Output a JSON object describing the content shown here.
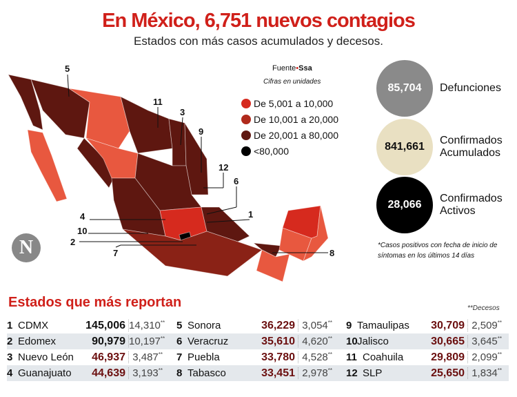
{
  "header": {
    "title": "En México, 6,751 nuevos contagios",
    "subtitle": "Estados con más casos acumulados y decesos."
  },
  "map": {
    "source_label": "Fuente",
    "source_dot": "•",
    "source": "Ssa",
    "units_note": "Cifras en unidades",
    "legend": [
      {
        "label": "De 5,001 a 10,000",
        "color": "#d62a1e"
      },
      {
        "label": "De 10,001 a 20,000",
        "color": "#b02a1c"
      },
      {
        "label": "De 20,001 a 80,000",
        "color": "#5e1710"
      },
      {
        "label": "<80,000",
        "color": "#000000"
      }
    ],
    "other_color": "#e8583f",
    "state_numbers": [
      "1",
      "2",
      "3",
      "4",
      "5",
      "6",
      "7",
      "8",
      "9",
      "10",
      "11",
      "12"
    ],
    "logo": "N"
  },
  "stats": [
    {
      "value": "85,704",
      "label": "Defunciones",
      "color": "#8a8a8a"
    },
    {
      "value": "841,661",
      "label": "Confirmados Acumulados",
      "color": "#e9e0c2"
    },
    {
      "value": "28,066",
      "label": "Confirmados Activos",
      "color": "#000000"
    }
  ],
  "note": "*Casos positivos con fecha de inicio de síntomas en los últimos 14 días",
  "table": {
    "title": "Estados que más reportan",
    "deaths_legend": "**Decesos",
    "rows": [
      {
        "n": "1",
        "state": "CDMX",
        "cases": "145,006",
        "deaths": "14,310"
      },
      {
        "n": "2",
        "state": "Edomex",
        "cases": "90,979",
        "deaths": "10,197"
      },
      {
        "n": "3",
        "state": "Nuevo León",
        "cases": "46,937",
        "deaths": "3,487"
      },
      {
        "n": "4",
        "state": "Guanajuato",
        "cases": "44,639",
        "deaths": "3,193"
      },
      {
        "n": "5",
        "state": "Sonora",
        "cases": "36,229",
        "deaths": "3,054"
      },
      {
        "n": "6",
        "state": "Veracruz",
        "cases": "35,610",
        "deaths": "4,620"
      },
      {
        "n": "7",
        "state": "Puebla",
        "cases": "33,780",
        "deaths": "4,528"
      },
      {
        "n": "8",
        "state": "Tabasco",
        "cases": "33,451",
        "deaths": "2,978"
      },
      {
        "n": "9",
        "state": "Tamaulipas",
        "cases": "30,709",
        "deaths": "2,509"
      },
      {
        "n": "10",
        "state": "Jalisco",
        "cases": "30,665",
        "deaths": "3,645"
      },
      {
        "n": "11",
        "state": "Coahuila",
        "cases": "29,809",
        "deaths": "2,099"
      },
      {
        "n": "12",
        "state": "SLP",
        "cases": "25,650",
        "deaths": "1,834"
      }
    ],
    "deaths_mark": "**"
  }
}
